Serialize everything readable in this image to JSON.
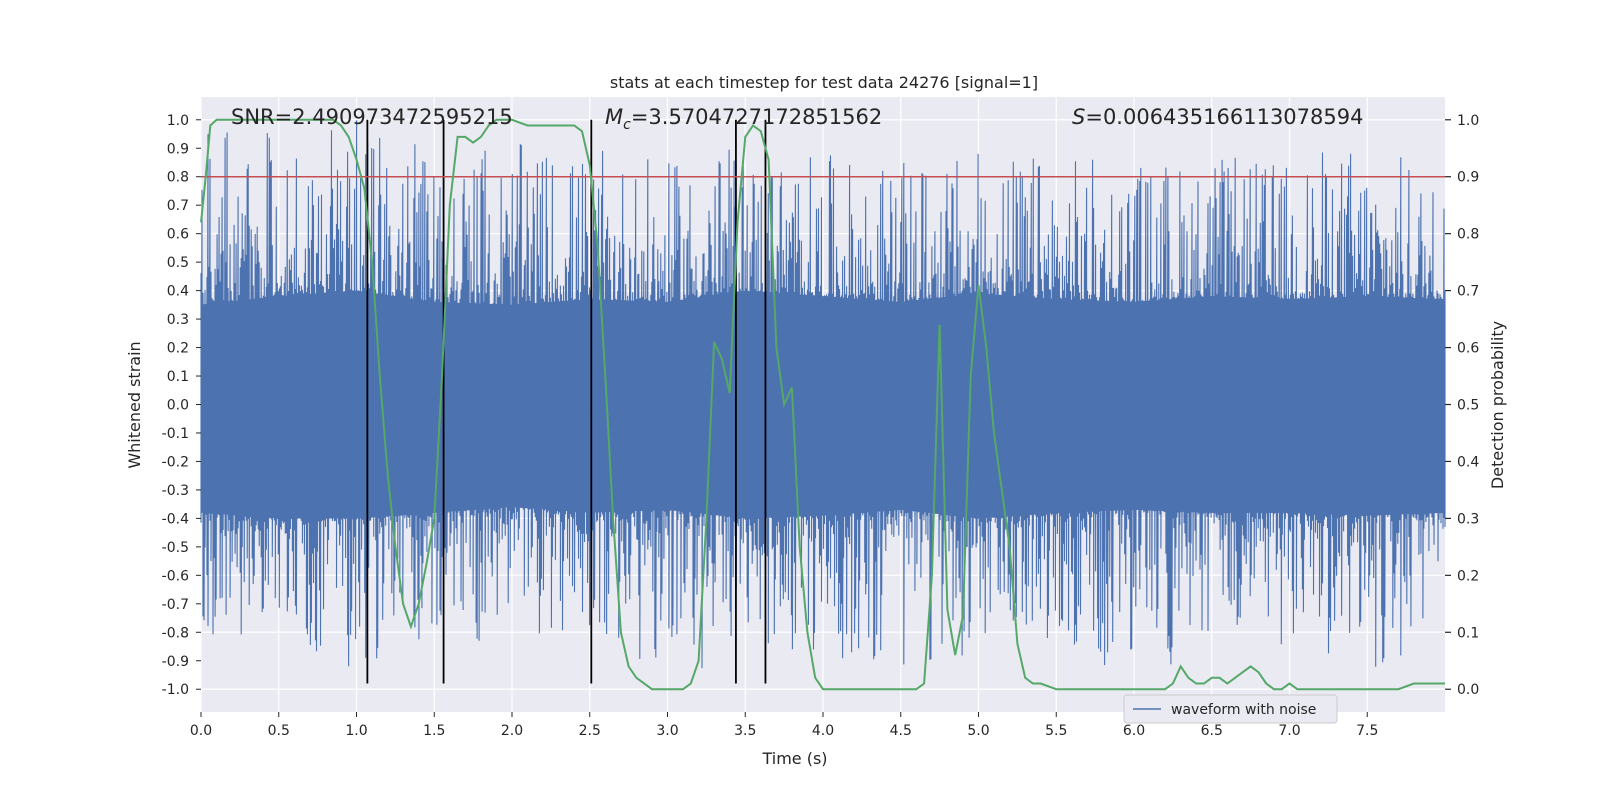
{
  "chart_data": {
    "type": "line",
    "title": "stats at each timestep for test data 24276 [signal=1]",
    "xlabel": "Time (s)",
    "ylabel": "Whitened strain",
    "y2label": "Detection probability",
    "xlim": [
      0.0,
      8.0
    ],
    "ylim": [
      -1.08,
      1.08
    ],
    "y2lim": [
      -0.04,
      1.04
    ],
    "xticks": [
      "0.0",
      "0.5",
      "1.0",
      "1.5",
      "2.0",
      "2.5",
      "3.0",
      "3.5",
      "4.0",
      "4.5",
      "5.0",
      "5.5",
      "6.0",
      "6.5",
      "7.0",
      "7.5"
    ],
    "yticks": [
      "1.0",
      "0.9",
      "0.8",
      "0.7",
      "0.6",
      "0.5",
      "0.4",
      "0.3",
      "0.2",
      "0.1",
      "0.0",
      "-0.1",
      "-0.2",
      "-0.3",
      "-0.4",
      "-0.5",
      "-0.6",
      "-0.7",
      "-0.8",
      "-0.9",
      "-1.0"
    ],
    "y2ticks": [
      "1.0",
      "0.9",
      "0.8",
      "0.7",
      "0.6",
      "0.5",
      "0.4",
      "0.3",
      "0.2",
      "0.1",
      "0.0"
    ],
    "grid": true,
    "legend_position": "lower-right",
    "legend": [
      "waveform with noise"
    ],
    "annotations": {
      "snr": "SNR=2.490973472595215",
      "mc_symbol": "M",
      "mc_sub": "c",
      "mc_value": "=3.5704727172851562",
      "s_symbol": "S",
      "s_value": "=0.006435166113078594"
    },
    "threshold": 0.9,
    "vertical_lines": [
      1.07,
      1.56,
      2.51,
      3.44,
      3.63
    ],
    "waveform_envelope": {
      "description_free_series": true,
      "x": [
        0.0,
        0.5,
        1.0,
        1.5,
        2.0,
        2.5,
        3.0,
        3.5,
        4.0,
        4.5,
        5.0,
        5.5,
        6.0,
        6.5,
        7.0,
        7.5,
        8.0
      ],
      "upper_band": [
        0.35,
        0.38,
        0.4,
        0.36,
        0.35,
        0.37,
        0.36,
        0.4,
        0.38,
        0.36,
        0.39,
        0.37,
        0.36,
        0.38,
        0.37,
        0.38,
        0.37
      ],
      "lower_band": [
        -0.38,
        -0.4,
        -0.4,
        -0.38,
        -0.36,
        -0.38,
        -0.37,
        -0.4,
        -0.39,
        -0.37,
        -0.4,
        -0.38,
        -0.37,
        -0.38,
        -0.38,
        -0.39,
        -0.38
      ],
      "peak_max": [
        0.95,
        0.98,
        1.0,
        0.9,
        0.92,
        0.9,
        0.85,
        0.92,
        0.88,
        0.85,
        0.89,
        0.88,
        0.87,
        0.88,
        0.86,
        0.95,
        0.8
      ],
      "peak_min": [
        -0.82,
        -0.8,
        -0.94,
        -0.85,
        -0.82,
        -0.82,
        -0.98,
        -0.9,
        -0.88,
        -0.95,
        -0.88,
        -0.85,
        -0.98,
        -0.87,
        -0.86,
        -0.95,
        -0.85
      ]
    },
    "series": [
      {
        "name": "waveform with noise",
        "color": "#4c72b0"
      },
      {
        "color": "#55a868",
        "x": [
          0.0,
          0.03,
          0.06,
          0.1,
          0.2,
          0.3,
          0.4,
          0.5,
          0.6,
          0.7,
          0.8,
          0.85,
          0.9,
          0.95,
          1.0,
          1.05,
          1.1,
          1.15,
          1.2,
          1.25,
          1.3,
          1.35,
          1.4,
          1.45,
          1.5,
          1.55,
          1.6,
          1.65,
          1.7,
          1.75,
          1.8,
          1.85,
          1.9,
          2.0,
          2.1,
          2.2,
          2.3,
          2.4,
          2.45,
          2.5,
          2.55,
          2.6,
          2.65,
          2.7,
          2.75,
          2.8,
          2.9,
          3.0,
          3.05,
          3.1,
          3.15,
          3.2,
          3.25,
          3.3,
          3.35,
          3.4,
          3.45,
          3.5,
          3.55,
          3.6,
          3.65,
          3.7,
          3.75,
          3.8,
          3.85,
          3.9,
          3.95,
          4.0,
          4.1,
          4.2,
          4.3,
          4.4,
          4.5,
          4.6,
          4.65,
          4.7,
          4.75,
          4.8,
          4.85,
          4.9,
          4.95,
          5.0,
          5.05,
          5.1,
          5.15,
          5.2,
          5.25,
          5.3,
          5.35,
          5.4,
          5.5,
          5.6,
          5.7,
          5.8,
          5.9,
          6.0,
          6.1,
          6.2,
          6.25,
          6.3,
          6.35,
          6.4,
          6.45,
          6.5,
          6.55,
          6.6,
          6.65,
          6.7,
          6.75,
          6.8,
          6.85,
          6.9,
          6.95,
          7.0,
          7.05,
          7.1,
          7.2,
          7.3,
          7.4,
          7.5,
          7.6,
          7.7,
          7.8,
          7.9,
          8.0
        ],
        "values": [
          0.82,
          0.9,
          0.99,
          1.0,
          1.0,
          1.0,
          1.0,
          1.0,
          1.0,
          1.0,
          1.0,
          1.0,
          0.99,
          0.97,
          0.93,
          0.88,
          0.75,
          0.55,
          0.38,
          0.25,
          0.15,
          0.11,
          0.15,
          0.22,
          0.3,
          0.55,
          0.85,
          0.97,
          0.97,
          0.96,
          0.97,
          0.99,
          1.0,
          1.0,
          0.99,
          0.99,
          0.99,
          0.99,
          0.98,
          0.92,
          0.78,
          0.55,
          0.3,
          0.1,
          0.04,
          0.02,
          0.0,
          0.0,
          0.0,
          0.0,
          0.01,
          0.05,
          0.3,
          0.61,
          0.58,
          0.52,
          0.82,
          0.97,
          0.99,
          0.98,
          0.93,
          0.6,
          0.5,
          0.53,
          0.25,
          0.1,
          0.02,
          0.0,
          0.0,
          0.0,
          0.0,
          0.0,
          0.0,
          0.0,
          0.01,
          0.2,
          0.64,
          0.14,
          0.06,
          0.13,
          0.55,
          0.71,
          0.6,
          0.45,
          0.35,
          0.25,
          0.08,
          0.02,
          0.01,
          0.01,
          0.0,
          0.0,
          0.0,
          0.0,
          0.0,
          0.0,
          0.0,
          0.0,
          0.01,
          0.04,
          0.02,
          0.01,
          0.01,
          0.02,
          0.02,
          0.01,
          0.02,
          0.03,
          0.04,
          0.03,
          0.01,
          0.0,
          0.0,
          0.01,
          0.0,
          0.0,
          0.0,
          0.0,
          0.0,
          0.0,
          0.0,
          0.0,
          0.01,
          0.01,
          0.01
        ]
      },
      {
        "color": "#c44e52"
      }
    ]
  }
}
